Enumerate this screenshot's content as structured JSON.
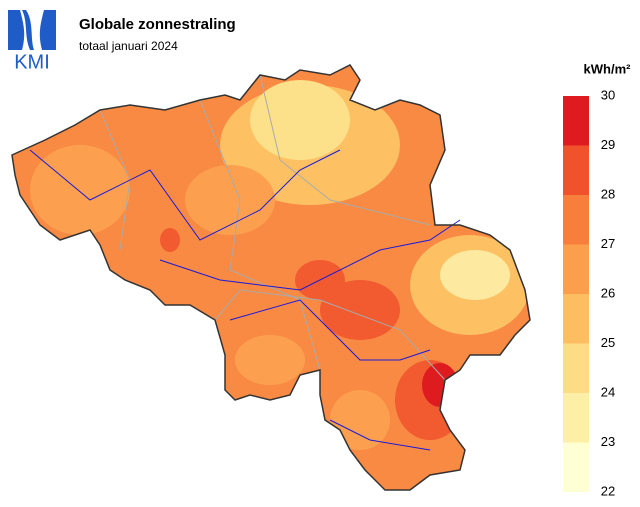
{
  "header": {
    "logo": "KMI",
    "title": "Globale zonnestraling",
    "subtitle": "totaal januari 2024"
  },
  "legend": {
    "unit": "kWh/m²",
    "ticks": [
      22,
      23,
      24,
      25,
      26,
      27,
      28,
      29,
      30
    ],
    "colors": [
      "#ffffd4",
      "#feefa6",
      "#fedc86",
      "#fdbe62",
      "#fc9f4c",
      "#f77f3b",
      "#f0532c",
      "#de1c1f"
    ]
  }
}
